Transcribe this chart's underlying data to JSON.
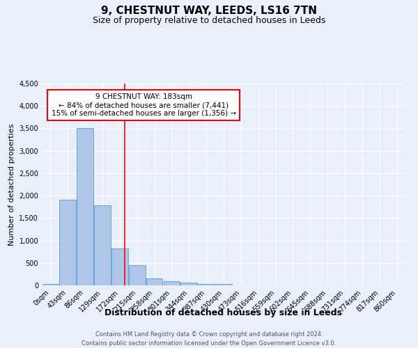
{
  "title": "9, CHESTNUT WAY, LEEDS, LS16 7TN",
  "subtitle": "Size of property relative to detached houses in Leeds",
  "xlabel": "Distribution of detached houses by size in Leeds",
  "ylabel": "Number of detached properties",
  "footer_line1": "Contains HM Land Registry data © Crown copyright and database right 2024.",
  "footer_line2": "Contains public sector information licensed under the Open Government Licence v3.0.",
  "annotation_title": "9 CHESTNUT WAY: 183sqm",
  "annotation_line2": "← 84% of detached houses are smaller (7,441)",
  "annotation_line3": "15% of semi-detached houses are larger (1,356) →",
  "bar_labels": [
    "0sqm",
    "43sqm",
    "86sqm",
    "129sqm",
    "172sqm",
    "215sqm",
    "258sqm",
    "301sqm",
    "344sqm",
    "387sqm",
    "430sqm",
    "473sqm",
    "516sqm",
    "559sqm",
    "602sqm",
    "645sqm",
    "688sqm",
    "731sqm",
    "774sqm",
    "817sqm",
    "860sqm"
  ],
  "bar_values": [
    30,
    1910,
    3500,
    1790,
    820,
    450,
    160,
    95,
    55,
    30,
    25,
    5,
    0,
    0,
    0,
    0,
    0,
    0,
    0,
    0,
    0
  ],
  "bar_color": "#aec6e8",
  "bar_edge_color": "#5b9bd5",
  "vline_x": 4.3,
  "vline_color": "red",
  "bg_color": "#eaf0fb",
  "plot_bg_color": "#eaf0fb",
  "ylim": [
    0,
    4500
  ],
  "yticks": [
    0,
    500,
    1000,
    1500,
    2000,
    2500,
    3000,
    3500,
    4000,
    4500
  ],
  "annotation_box_color": "white",
  "annotation_box_edge_color": "red",
  "title_fontsize": 11,
  "subtitle_fontsize": 9,
  "ylabel_fontsize": 8,
  "xlabel_fontsize": 9,
  "tick_fontsize": 7,
  "footer_fontsize": 6
}
